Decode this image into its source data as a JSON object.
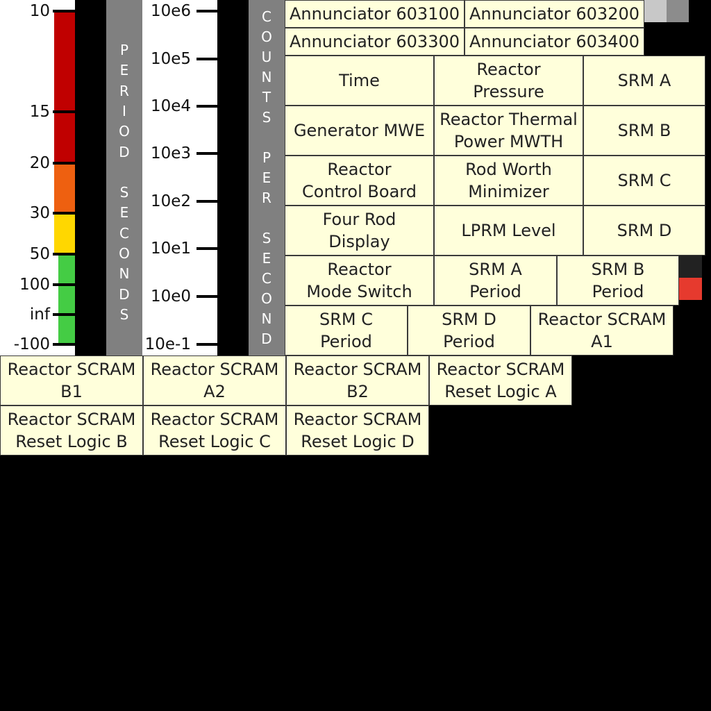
{
  "period_scale": {
    "label_letters": [
      "P",
      "E",
      "R",
      "I",
      "O",
      "D",
      "",
      "S",
      "E",
      "C",
      "O",
      "N",
      "D",
      "S"
    ],
    "ticks": [
      {
        "label": "10"
      },
      {
        "label": "15"
      },
      {
        "label": "20"
      },
      {
        "label": "30"
      },
      {
        "label": "50"
      },
      {
        "label": "100"
      },
      {
        "label": "inf"
      },
      {
        "label": "-100"
      }
    ],
    "band_colors": {
      "red": "#c00000",
      "orange": "#ee6010",
      "yellow": "#ffd700",
      "green": "#44cc44"
    }
  },
  "counts_scale": {
    "label_letters": [
      "C",
      "O",
      "U",
      "N",
      "T",
      "S",
      "",
      "P",
      "E",
      "R",
      "",
      "S",
      "E",
      "C",
      "O",
      "N",
      "D"
    ],
    "ticks": [
      {
        "label": "10e6"
      },
      {
        "label": "10e5"
      },
      {
        "label": "10e4"
      },
      {
        "label": "10e3"
      },
      {
        "label": "10e2"
      },
      {
        "label": "10e1"
      },
      {
        "label": "10e0"
      },
      {
        "label": "10e-1"
      }
    ]
  },
  "annunciators": [
    "Annunciator 603100",
    "Annunciator 603200",
    "Annunciator 603300",
    "Annunciator 603400"
  ],
  "panels": [
    "Time",
    "Reactor\nPressure",
    "SRM A",
    "Generator MWE",
    "Reactor Thermal\nPower MWTH",
    "SRM B",
    "Reactor\nControl Board",
    "Rod Worth\nMinimizer",
    "SRM C",
    "Four Rod\nDisplay",
    "LPRM Level",
    "SRM D",
    "Reactor\nMode Switch",
    "SRM A\nPeriod",
    "SRM B\nPeriod",
    "SRM C\nPeriod",
    "SRM D\nPeriod",
    "Reactor SCRAM\nA1",
    "Reactor SCRAM\nB1",
    "Reactor SCRAM\nA2",
    "Reactor SCRAM\nB2",
    "Reactor SCRAM\nReset Logic A",
    "Reactor SCRAM\nReset Logic B",
    "Reactor SCRAM\nReset Logic C",
    "Reactor SCRAM\nReset Logic D"
  ],
  "colors": {
    "cell_bg": "#ffffdb",
    "swatch_light": "#c8c8c8",
    "swatch_mid": "#8c8c8c",
    "swatch_dark": "#222222",
    "swatch_red": "#e63a2e"
  }
}
